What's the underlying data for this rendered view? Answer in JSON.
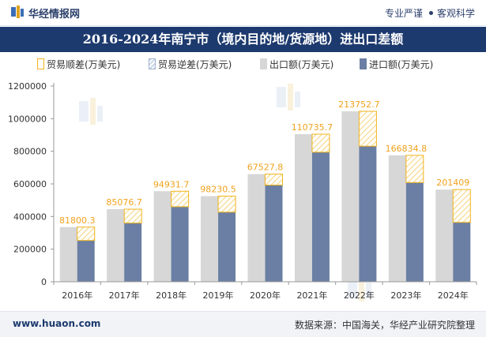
{
  "header": {
    "brand": "华经情报网",
    "tag1": "专业严谨",
    "tag2": "客观科学",
    "title": "2016-2024年南宁市（境内目的地/货源地）进出口差额"
  },
  "legend": {
    "surplus": "贸易顺差(万美元)",
    "deficit": "贸易逆差(万美元)",
    "export": "出口额(万美元)",
    "import": "进口额(万美元)"
  },
  "footer": {
    "url": "www.huaon.com",
    "source": "数据来源：中国海关，华经产业研究院整理"
  },
  "colors": {
    "export": "#d7d7d7",
    "import": "#6b7fa4",
    "surplus_border": "#f1b31c",
    "surplus_label": "#f1a21c",
    "title_bg": "#1d3a6e"
  },
  "chart_data": {
    "type": "bar",
    "categories": [
      "2016年",
      "2017年",
      "2018年",
      "2019年",
      "2020年",
      "2021年",
      "2022年",
      "2023年",
      "2024年"
    ],
    "series": [
      {
        "name": "出口额(万美元)",
        "values": [
          335000,
          445000,
          555000,
          525000,
          660000,
          905000,
          1045000,
          775000,
          565000
        ]
      },
      {
        "name": "进口额(万美元)",
        "values": [
          253200,
          359900,
          460100,
          426800,
          592500,
          794300,
          831300,
          608200,
          364000
        ]
      },
      {
        "name": "贸易顺差(万美元)",
        "values": [
          81800.3,
          85076.7,
          94931.7,
          98230.5,
          67527.8,
          110735.7,
          213752.7,
          166834.8,
          201409
        ]
      },
      {
        "name": "贸易逆差(万美元)",
        "values": [
          0,
          0,
          0,
          0,
          0,
          0,
          0,
          0,
          0
        ]
      }
    ],
    "data_labels": [
      "81800.3",
      "85076.7",
      "94931.7",
      "98230.5",
      "67527.8",
      "110735.7",
      "213752.7",
      "166834.8",
      "201409"
    ],
    "yticks": [
      "0",
      "200000",
      "400000",
      "600000",
      "800000",
      "1000000",
      "1200000"
    ],
    "ylim": [
      0,
      1200000
    ],
    "grid": false,
    "legend_position": "top"
  }
}
